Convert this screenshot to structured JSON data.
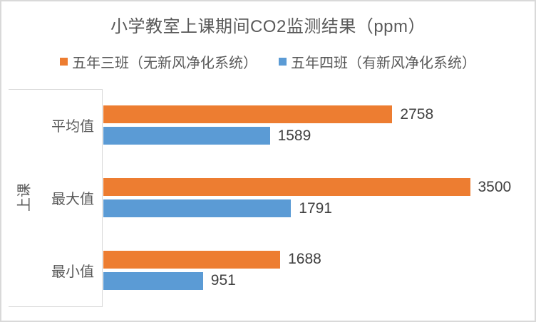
{
  "chart_data": {
    "type": "bar",
    "orientation": "horizontal",
    "title": "小学教室上课期间CO2监测结果（ppm）",
    "group_label": "上课",
    "categories": [
      "平均值",
      "最大值",
      "最小值"
    ],
    "series": [
      {
        "name": "五年三班（无新风净化系统）",
        "color": "#ED7D31",
        "values": [
          2758,
          3500,
          1688
        ]
      },
      {
        "name": "五年四班（有新风净化系统）",
        "color": "#5B9BD5",
        "values": [
          1589,
          1791,
          951
        ]
      }
    ],
    "xlim": [
      0,
      4000
    ],
    "value_labels": true,
    "gridlines": false,
    "value_axis_visible": false,
    "legend_position": "top"
  },
  "colors": {
    "axis_line": "#D9D9D9",
    "border": "#D9D9D9",
    "title_text": "#595959",
    "category_text": "#595959",
    "value_text": "#404040"
  }
}
